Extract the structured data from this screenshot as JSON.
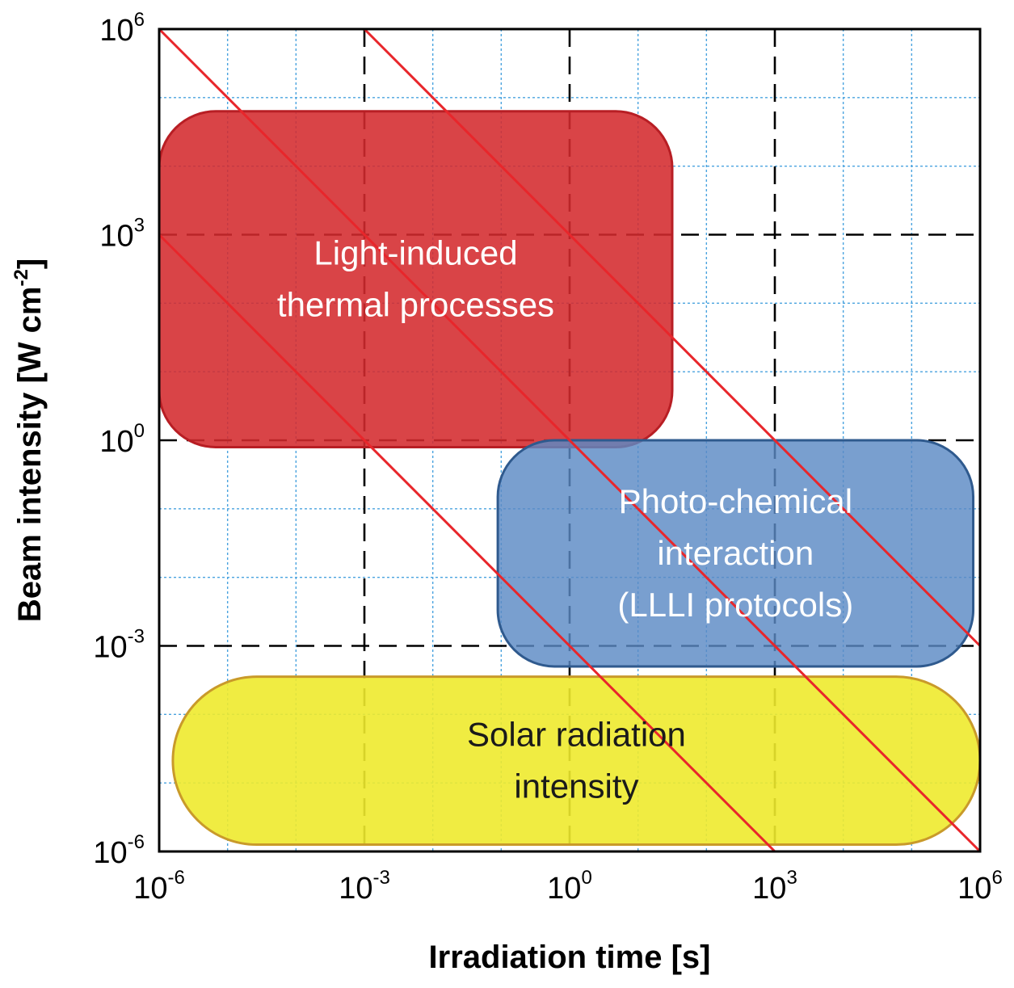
{
  "chart_data": {
    "type": "area",
    "title": "",
    "xlabel": "Irradiation time [s]",
    "ylabel": "Beam intensity [W cm-2]",
    "ylabel_parts": {
      "base": "Beam intensity [W cm",
      "exponent": "-2",
      "close": "]"
    },
    "x_scale": "log",
    "y_scale": "log",
    "xlim_exponent": [
      -6,
      6
    ],
    "ylim_exponent": [
      -6,
      6
    ],
    "x_ticks": [
      {
        "base": "10",
        "exp": "-6",
        "value_exponent": -6
      },
      {
        "base": "10",
        "exp": "-3",
        "value_exponent": -3
      },
      {
        "base": "10",
        "exp": "0",
        "value_exponent": 0
      },
      {
        "base": "10",
        "exp": "3",
        "value_exponent": 3
      },
      {
        "base": "10",
        "exp": "6",
        "value_exponent": 6
      }
    ],
    "y_ticks": [
      {
        "base": "10",
        "exp": "-6",
        "value_exponent": -6
      },
      {
        "base": "10",
        "exp": "-3",
        "value_exponent": -3
      },
      {
        "base": "10",
        "exp": "0",
        "value_exponent": 0
      },
      {
        "base": "10",
        "exp": "3",
        "value_exponent": 3
      },
      {
        "base": "10",
        "exp": "6",
        "value_exponent": 6
      }
    ],
    "major_grid": {
      "style": "dashed",
      "color": "#000000"
    },
    "minor_grid": {
      "style": "dotted",
      "color": "#4aa3df"
    },
    "regions": [
      {
        "name": "thermal",
        "label_lines": [
          "Light-induced",
          "thermal processes"
        ],
        "x_exponent_range": [
          -6,
          1.5
        ],
        "y_exponent_range": [
          -0.1,
          4.8
        ],
        "fill": "#d42a2e",
        "stroke": "#b81e24",
        "text_color": "#ffffff",
        "opacity": 0.88
      },
      {
        "name": "photochemical",
        "label_lines": [
          "Photo-chemical",
          "interaction",
          "(LLLI protocols)"
        ],
        "x_exponent_range": [
          -1.05,
          5.9
        ],
        "y_exponent_range": [
          -3.3,
          0
        ],
        "fill": "#5b8ac4",
        "stroke": "#2f5a8e",
        "text_color": "#ffffff",
        "opacity": 0.82
      },
      {
        "name": "solar",
        "label_lines": [
          "Solar radiation",
          "intensity"
        ],
        "x_exponent_range": [
          -5.8,
          6
        ],
        "y_exponent_range": [
          -5.9,
          -3.45
        ],
        "fill": "#eeea2e",
        "stroke": "#c99a2a",
        "text_color": "#1a1a1a",
        "opacity": 0.9
      }
    ],
    "fluence_lines": [
      {
        "x1_exponent": -6,
        "y1_exponent": 3,
        "x2_exponent": 3,
        "y2_exponent": -6
      },
      {
        "x1_exponent": -6,
        "y1_exponent": 6,
        "x2_exponent": 6,
        "y2_exponent": -6
      },
      {
        "x1_exponent": -3,
        "y1_exponent": 6,
        "x2_exponent": 6,
        "y2_exponent": -3
      }
    ],
    "fluence_line_color": "#e8262b"
  }
}
